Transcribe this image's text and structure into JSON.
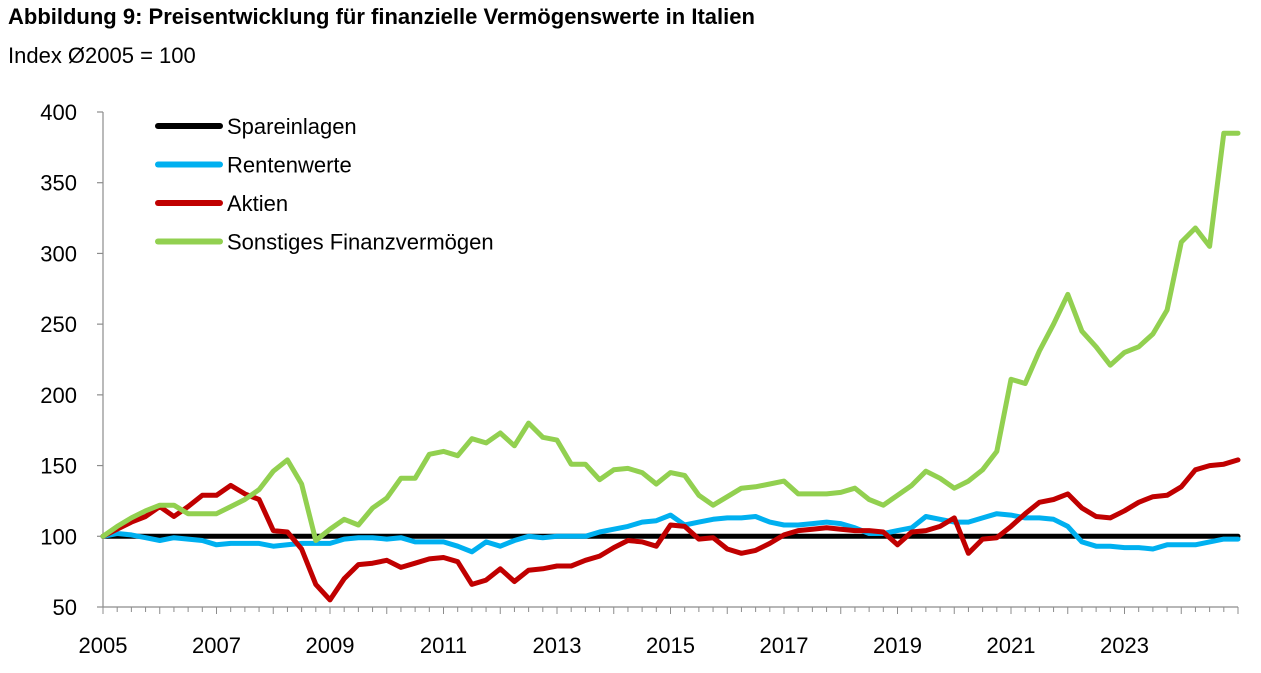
{
  "title": "Abbildung 9: Preisentwicklung für finanzielle Vermögenswerte in Italien",
  "subtitle": "Index Ø2005 = 100",
  "chart_data": {
    "type": "line",
    "title": "Abbildung 9: Preisentwicklung für finanzielle Vermögenswerte in Italien",
    "subtitle": "Index Ø2005 = 100",
    "xlabel": "",
    "ylabel": "",
    "x_tick_labels": [
      "2005",
      "2007",
      "2009",
      "2011",
      "2013",
      "2015",
      "2017",
      "2019",
      "2021",
      "2023"
    ],
    "y_tick_labels": [
      "50",
      "100",
      "150",
      "200",
      "250",
      "300",
      "350",
      "400"
    ],
    "xlim": [
      2005.0,
      2025.0
    ],
    "ylim": [
      50,
      400
    ],
    "x": [
      2005.0,
      2005.25,
      2005.5,
      2005.75,
      2006.0,
      2006.25,
      2006.5,
      2006.75,
      2007.0,
      2007.25,
      2007.5,
      2007.75,
      2008.0,
      2008.25,
      2008.5,
      2008.75,
      2009.0,
      2009.25,
      2009.5,
      2009.75,
      2010.0,
      2010.25,
      2010.5,
      2010.75,
      2011.0,
      2011.25,
      2011.5,
      2011.75,
      2012.0,
      2012.25,
      2012.5,
      2012.75,
      2013.0,
      2013.25,
      2013.5,
      2013.75,
      2014.0,
      2014.25,
      2014.5,
      2014.75,
      2015.0,
      2015.25,
      2015.5,
      2015.75,
      2016.0,
      2016.25,
      2016.5,
      2016.75,
      2017.0,
      2017.25,
      2017.5,
      2017.75,
      2018.0,
      2018.25,
      2018.5,
      2018.75,
      2019.0,
      2019.25,
      2019.5,
      2019.75,
      2020.0,
      2020.25,
      2020.5,
      2020.75,
      2021.0,
      2021.25,
      2021.5,
      2021.75,
      2022.0,
      2022.25,
      2022.5,
      2022.75,
      2023.0,
      2023.25,
      2023.5,
      2023.75,
      2024.0,
      2024.25,
      2024.5,
      2024.75,
      2025.0
    ],
    "series": [
      {
        "name": "Spareinlagen",
        "color": "#000000",
        "values": [
          100,
          100,
          100,
          100,
          100,
          100,
          100,
          100,
          100,
          100,
          100,
          100,
          100,
          100,
          100,
          100,
          100,
          100,
          100,
          100,
          100,
          100,
          100,
          100,
          100,
          100,
          100,
          100,
          100,
          100,
          100,
          100,
          100,
          100,
          100,
          100,
          100,
          100,
          100,
          100,
          100,
          100,
          100,
          100,
          100,
          100,
          100,
          100,
          100,
          100,
          100,
          100,
          100,
          100,
          100,
          100,
          100,
          100,
          100,
          100,
          100,
          100,
          100,
          100,
          100,
          100,
          100,
          100,
          100,
          100,
          100,
          100,
          100,
          100,
          100,
          100,
          100,
          100,
          100,
          100,
          100
        ]
      },
      {
        "name": "Rentenwerte",
        "color": "#00b0f0",
        "values": [
          100,
          102,
          101,
          99,
          97,
          99,
          98,
          97,
          94,
          95,
          95,
          95,
          93,
          94,
          95,
          95,
          95,
          98,
          99,
          99,
          98,
          99,
          96,
          96,
          96,
          93,
          89,
          96,
          93,
          97,
          100,
          99,
          100,
          100,
          100,
          103,
          105,
          107,
          110,
          111,
          115,
          108,
          110,
          112,
          113,
          113,
          114,
          110,
          108,
          108,
          109,
          110,
          109,
          106,
          102,
          102,
          104,
          106,
          114,
          112,
          110,
          110,
          113,
          116,
          115,
          113,
          113,
          112,
          107,
          96,
          93,
          93,
          92,
          92,
          91,
          94,
          94,
          94,
          96,
          98,
          98
        ]
      },
      {
        "name": "Aktien",
        "color": "#c00000",
        "values": [
          100,
          105,
          110,
          114,
          121,
          114,
          121,
          129,
          129,
          136,
          130,
          126,
          104,
          103,
          91,
          66,
          55,
          70,
          80,
          81,
          83,
          78,
          81,
          84,
          85,
          82,
          66,
          69,
          77,
          68,
          76,
          77,
          79,
          79,
          83,
          86,
          92,
          97,
          96,
          93,
          108,
          107,
          98,
          99,
          91,
          88,
          90,
          95,
          101,
          104,
          105,
          106,
          105,
          104,
          104,
          103,
          94,
          103,
          104,
          107,
          113,
          88,
          98,
          99,
          107,
          116,
          124,
          126,
          130,
          120,
          114,
          113,
          118,
          124,
          128,
          129,
          135,
          147,
          150,
          151,
          154
        ]
      },
      {
        "name": "Sonstiges Finanzvermögen",
        "color": "#92d050",
        "values": [
          100,
          107,
          113,
          118,
          122,
          122,
          116,
          116,
          116,
          121,
          126,
          133,
          146,
          154,
          137,
          97,
          105,
          112,
          108,
          120,
          127,
          141,
          141,
          158,
          160,
          157,
          169,
          166,
          173,
          164,
          180,
          170,
          168,
          151,
          151,
          140,
          147,
          148,
          145,
          137,
          145,
          143,
          129,
          122,
          128,
          134,
          135,
          137,
          139,
          130,
          130,
          130,
          131,
          134,
          126,
          122,
          129,
          136,
          146,
          141,
          134,
          139,
          147,
          160,
          211,
          208,
          231,
          250,
          271,
          245,
          234,
          221,
          230,
          234,
          243,
          260,
          308,
          318,
          305,
          385,
          385
        ]
      }
    ],
    "legend": {
      "position": "top-left",
      "entries": [
        "Spareinlagen",
        "Rentenwerte",
        "Aktien",
        "Sonstiges Finanzvermögen"
      ]
    },
    "grid": false
  }
}
